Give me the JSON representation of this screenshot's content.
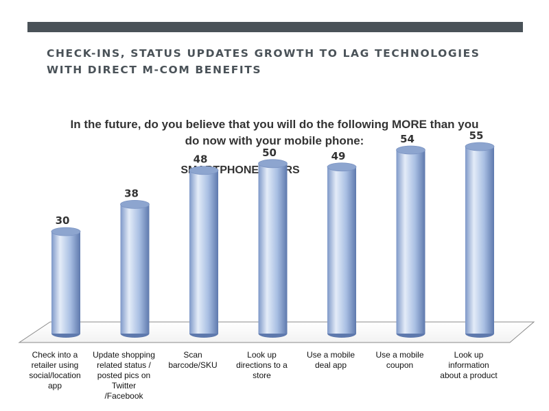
{
  "slide": {
    "title": "CHECK-INS, STATUS UPDATES GROWTH TO LAG TECHNOLOGIES WITH DIRECT M-COM BENEFITS",
    "question": "In the future, do you believe that you will do the following MORE than you do now with your mobile phone:",
    "subgroup": "SMARTPHONE USERS"
  },
  "colors": {
    "top_bar": "#4a5258",
    "bar_light": "#e4ecf8",
    "bar_mid": "#a9bfe3",
    "bar_dark": "#5e79ad",
    "bar_top": "#8da5cf"
  },
  "chart_data": {
    "type": "bar",
    "style": "3d-cylinder",
    "categories": [
      [
        "Check into a",
        "retailer using",
        "social/location",
        "app"
      ],
      [
        "Update shopping",
        "related status /",
        "posted pics on",
        "Twitter",
        "/Facebook"
      ],
      [
        "Scan",
        "barcode/SKU"
      ],
      [
        "Look up",
        "directions to a",
        "store"
      ],
      [
        "Use a mobile",
        "deal app"
      ],
      [
        "Use a mobile",
        "coupon"
      ],
      [
        "Look up",
        "information",
        "about a product"
      ]
    ],
    "values": [
      30,
      38,
      48,
      50,
      49,
      54,
      55
    ],
    "ylim": [
      0,
      60
    ],
    "grid": false,
    "legend": "none"
  }
}
